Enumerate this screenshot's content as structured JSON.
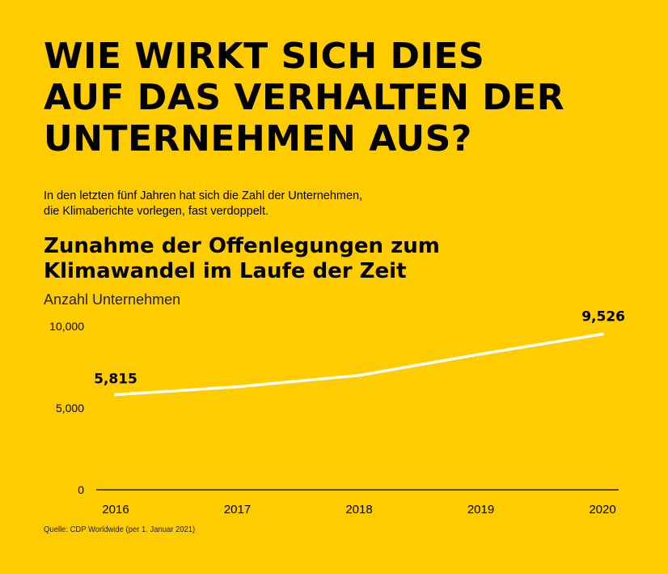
{
  "header": {
    "title_lines": [
      "WIE WIRKT SICH DIES",
      "AUF DAS VERHALTEN DER",
      "UNTERNEHMEN AUS?"
    ],
    "intro_lines": [
      "In den letzten fünf Jahren hat sich die Zahl der Unternehmen,",
      "die Klimaberichte vorlegen, fast verdoppelt."
    ]
  },
  "chart_data": {
    "type": "line",
    "title_lines": [
      "Zunahme der Offenlegungen zum",
      "Klimawandel im Laufe der Zeit"
    ],
    "ylabel": "Anzahl Unternehmen",
    "xlabel": "",
    "x": [
      "2016",
      "2017",
      "2018",
      "2019",
      "2020"
    ],
    "series": [
      {
        "name": "Anzahl Unternehmen",
        "values": [
          5815,
          6300,
          7000,
          8300,
          9526
        ]
      }
    ],
    "ylim": [
      0,
      10000
    ],
    "yticks": [
      0,
      5000,
      10000
    ],
    "ytick_labels": [
      "0",
      "5,000",
      "10,000"
    ],
    "annotations": [
      {
        "index": 0,
        "text": "5,815"
      },
      {
        "index": 4,
        "text": "9,526"
      }
    ],
    "line_color": "#FFFFFF",
    "grid": false
  },
  "source": "Quelle: CDP Worldwide (per 1. Januar 2021)",
  "colors": {
    "background": "#FFCC00",
    "text": "#000000",
    "line": "#FFFFFF"
  }
}
